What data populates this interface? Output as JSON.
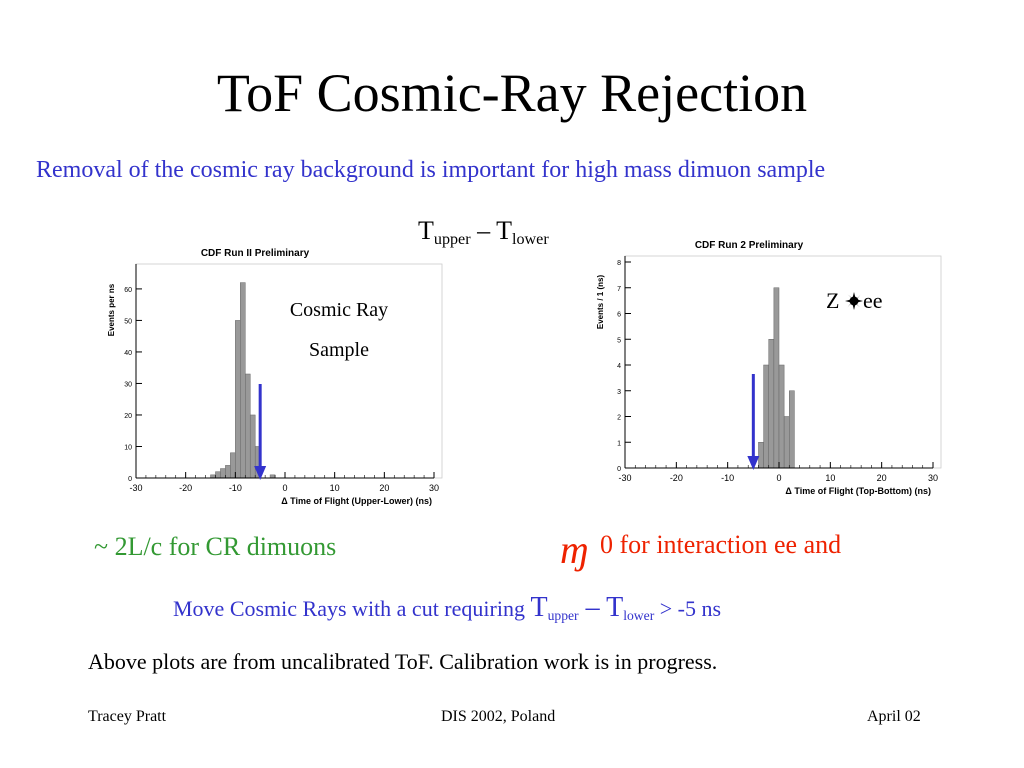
{
  "slide": {
    "title": "ToF Cosmic-Ray Rejection",
    "subtitle": "Removal of the cosmic ray background is important for high mass dimuon sample",
    "t_upper": "T",
    "t_upper_sub": "upper",
    "dash": " – ",
    "t_lower": "T",
    "t_lower_sub": "lower",
    "cosmic_label_line1": "Cosmic Ray",
    "cosmic_label_line2": "Sample",
    "zee_label_z": "Z ",
    "zee_label_ee": "ee",
    "cr_note": "~ 2L/c for CR dimuons",
    "interaction_note_zero": "0",
    "interaction_note": " for interaction ee and",
    "cut_note_prefix": "Move Cosmic Rays with a cut requiring ",
    "cut_note_suffix": " > -5 ns",
    "calibration_note": "Above plots are from uncalibrated ToF. Calibration work is in progress.",
    "footer_left": "Tracey Pratt",
    "footer_center": "DIS 2002, Poland",
    "footer_right": "April 02",
    "squiggle": "ɱ"
  },
  "colors": {
    "bar": "#999999",
    "arrow": "#3333cc",
    "subtitle": "#3333cc",
    "cr_note": "#339933",
    "int_note": "#ee2200"
  },
  "chart_data": [
    {
      "type": "bar",
      "title": "CDF Run II Preliminary",
      "xlabel": "Δ Time of Flight (Upper-Lower) (ns)",
      "ylabel": "Events per ns",
      "xlim": [
        -30,
        30
      ],
      "ylim": [
        0,
        66
      ],
      "x_ticks": [
        -30,
        -20,
        -10,
        0,
        10,
        20,
        30
      ],
      "y_ticks": [
        0,
        10,
        20,
        30,
        40,
        50,
        60
      ],
      "bin_edges": [
        -15,
        -14,
        -13,
        -12,
        -11,
        -10,
        -9,
        -8,
        -7,
        -6,
        -5
      ],
      "values": [
        1,
        2,
        3,
        4,
        8,
        50,
        62,
        33,
        20,
        10
      ],
      "extra_bins": [
        {
          "x0": -3,
          "x1": -2,
          "value": 1
        }
      ],
      "cut_arrow_x": -5,
      "grid": false,
      "legend": null
    },
    {
      "type": "bar",
      "title": "CDF Run 2 Preliminary",
      "xlabel": "Δ Time of Flight (Top-Bottom) (ns)",
      "ylabel": "Events / 1 (ns)",
      "xlim": [
        -30,
        30
      ],
      "ylim": [
        0,
        8
      ],
      "x_ticks": [
        -30,
        -20,
        -10,
        0,
        10,
        20,
        30
      ],
      "y_ticks": [
        0,
        1,
        2,
        3,
        4,
        5,
        6,
        7,
        8
      ],
      "bin_edges": [
        -4,
        -3,
        -2,
        -1,
        0,
        1,
        2,
        3
      ],
      "values": [
        1,
        4,
        5,
        7,
        4,
        2,
        3
      ],
      "cut_arrow_x": -5,
      "grid": false,
      "legend": null
    }
  ]
}
